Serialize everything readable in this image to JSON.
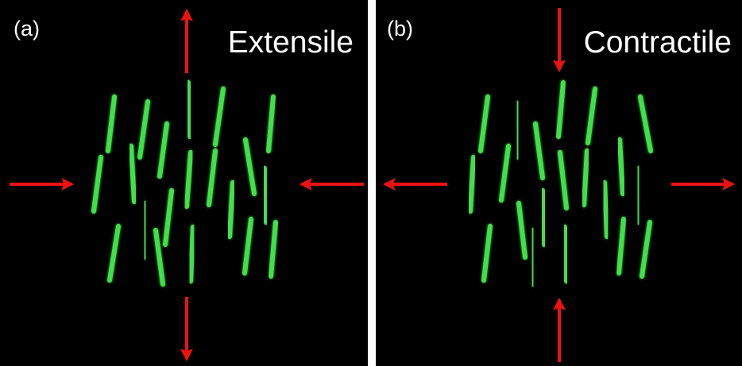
{
  "panels": [
    {
      "label": "(a)",
      "title": "Extensile"
    },
    {
      "label": "(b)",
      "title": "Contractile"
    }
  ]
}
